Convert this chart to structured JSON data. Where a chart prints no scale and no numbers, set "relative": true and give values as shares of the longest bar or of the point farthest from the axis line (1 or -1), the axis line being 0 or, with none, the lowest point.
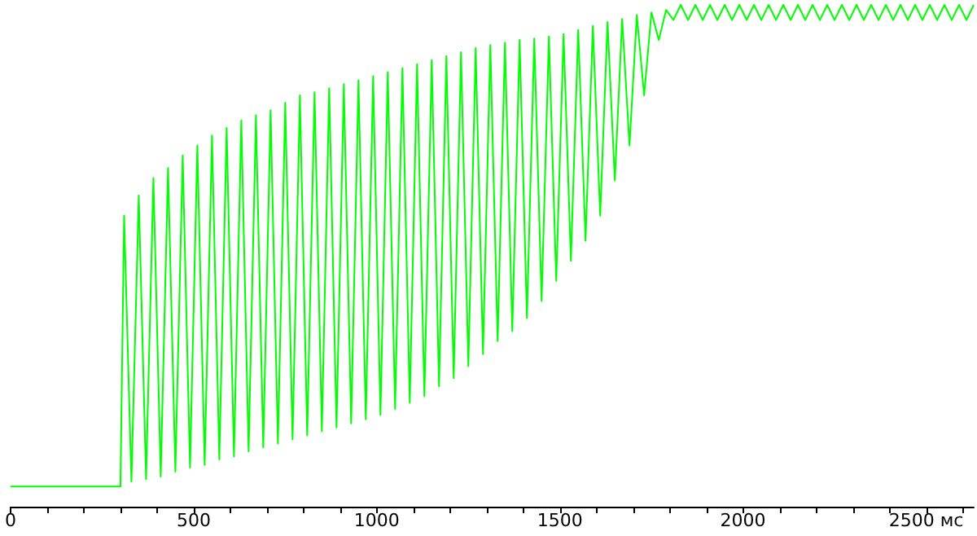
{
  "chart_data": {
    "type": "line",
    "relative": true,
    "grid": false,
    "marker": "none",
    "line_style": "solid",
    "xlim": [
      0,
      2630
    ],
    "xticks": [
      0,
      {
        "value": 100,
        "label": null
      },
      {
        "value": 200,
        "label": null
      },
      {
        "value": 300,
        "label": null
      },
      {
        "value": 400,
        "label": null
      },
      500,
      {
        "value": 600,
        "label": null
      },
      {
        "value": 700,
        "label": null
      },
      {
        "value": 800,
        "label": null
      },
      {
        "value": 900,
        "label": null
      },
      1000,
      {
        "value": 1100,
        "label": null
      },
      {
        "value": 1200,
        "label": null
      },
      {
        "value": 1300,
        "label": null
      },
      {
        "value": 1400,
        "label": null
      },
      1500,
      {
        "value": 1600,
        "label": null
      },
      {
        "value": 1700,
        "label": null
      },
      {
        "value": 1800,
        "label": null
      },
      {
        "value": 1900,
        "label": null
      },
      2000,
      {
        "value": 2100,
        "label": null
      },
      {
        "value": 2200,
        "label": null
      },
      {
        "value": 2300,
        "label": null
      },
      {
        "value": 2400,
        "label": null
      },
      {
        "value": 2500,
        "label": "2500 мс"
      },
      {
        "value": 2600,
        "label": null
      }
    ],
    "series": [
      {
        "color": "#00ff00",
        "x": [
          0,
          300,
          310,
          330,
          350,
          370,
          390,
          410,
          430,
          450,
          470,
          490,
          510,
          530,
          550,
          570,
          590,
          610,
          630,
          650,
          670,
          690,
          710,
          730,
          750,
          770,
          790,
          810,
          830,
          850,
          870,
          890,
          910,
          930,
          950,
          970,
          990,
          1010,
          1030,
          1050,
          1070,
          1090,
          1110,
          1130,
          1150,
          1170,
          1190,
          1210,
          1230,
          1250,
          1270,
          1290,
          1310,
          1330,
          1350,
          1370,
          1390,
          1410,
          1430,
          1450,
          1470,
          1490,
          1510,
          1530,
          1550,
          1570,
          1590,
          1610,
          1630,
          1650,
          1670,
          1690,
          1710,
          1730,
          1750,
          1770,
          1790,
          1810,
          1830,
          1850,
          1870,
          1890,
          1910,
          1930,
          1950,
          1970,
          1990,
          2010,
          2030,
          2050,
          2070,
          2090,
          2110,
          2130,
          2150,
          2170,
          2190,
          2210,
          2230,
          2250,
          2270,
          2290,
          2310,
          2330,
          2350,
          2370,
          2390,
          2410,
          2430,
          2450,
          2470,
          2490,
          2510,
          2530,
          2550,
          2570,
          2590,
          2610,
          2630
        ],
        "values": [
          0.04,
          0.04,
          0.58,
          0.05,
          0.62,
          0.055,
          0.655,
          0.06,
          0.675,
          0.07,
          0.7,
          0.078,
          0.72,
          0.083,
          0.74,
          0.094,
          0.755,
          0.1,
          0.77,
          0.11,
          0.78,
          0.118,
          0.79,
          0.126,
          0.805,
          0.134,
          0.82,
          0.142,
          0.826,
          0.15,
          0.834,
          0.158,
          0.842,
          0.166,
          0.85,
          0.174,
          0.858,
          0.183,
          0.866,
          0.195,
          0.874,
          0.207,
          0.882,
          0.22,
          0.89,
          0.24,
          0.898,
          0.256,
          0.906,
          0.28,
          0.914,
          0.304,
          0.92,
          0.33,
          0.925,
          0.35,
          0.93,
          0.376,
          0.933,
          0.41,
          0.937,
          0.45,
          0.942,
          0.49,
          0.95,
          0.53,
          0.958,
          0.58,
          0.966,
          0.65,
          0.972,
          0.72,
          0.98,
          0.82,
          0.985,
          0.93,
          0.99,
          0.97,
          1.0,
          0.97,
          1.0,
          0.97,
          1.0,
          0.97,
          1.0,
          0.97,
          1.0,
          0.97,
          1.0,
          0.97,
          1.0,
          0.97,
          1.0,
          0.97,
          1.0,
          0.97,
          1.0,
          0.97,
          1.0,
          0.97,
          1.0,
          0.97,
          1.0,
          0.97,
          1.0,
          0.97,
          1.0,
          0.97,
          1.0,
          0.97,
          1.0,
          0.97,
          1.0,
          0.97,
          1.0,
          0.97,
          1.0,
          0.97,
          1.0
        ]
      }
    ]
  }
}
